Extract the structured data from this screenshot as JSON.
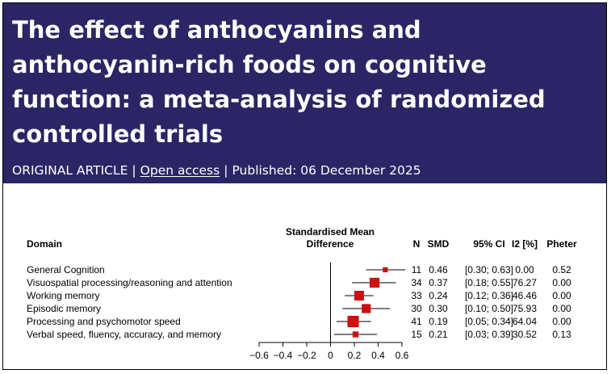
{
  "article": {
    "title": "The effect of anthocyanins and anthocyanin-rich foods on cognitive function: a meta-analysis of randomized controlled trials",
    "type_label": "ORIGINAL ARTICLE",
    "access_label": "Open access",
    "published_label": "Published: 06 December 2025"
  },
  "colors": {
    "header_bg": "#2b2566",
    "marker": "#cc1111"
  },
  "chart_data": {
    "type": "forest",
    "columns": {
      "domain": "Domain",
      "effect_line1": "Standardised Mean",
      "effect_line2": "Difference",
      "n": "N",
      "smd": "SMD",
      "ci": "95% CI",
      "i2": "I2 [%]",
      "pheter": "Pheter"
    },
    "xlim": [
      -0.6,
      0.6
    ],
    "ticks": [
      -0.6,
      -0.4,
      -0.2,
      0,
      0.2,
      0.4,
      0.6
    ],
    "tick_labels": [
      "−0.6",
      "−0.4",
      "−0.2",
      "0",
      "0.2",
      "0.4",
      "0.6"
    ],
    "rows": [
      {
        "domain": "General Cognition",
        "n": "11",
        "smd": 0.46,
        "lo": 0.3,
        "hi": 0.63,
        "smd_text": "0.46",
        "ci_text": "[0.30; 0.63]",
        "i2": "0.00",
        "pheter": "0.52"
      },
      {
        "domain": "Visuospatial processing/reasoning and attention",
        "n": "34",
        "smd": 0.37,
        "lo": 0.18,
        "hi": 0.55,
        "smd_text": "0.37",
        "ci_text": "[0.18; 0.55]",
        "i2": "76.27",
        "pheter": "0.00"
      },
      {
        "domain": "Working memory",
        "n": "33",
        "smd": 0.24,
        "lo": 0.12,
        "hi": 0.36,
        "smd_text": "0.24",
        "ci_text": "[0.12; 0.36]",
        "i2": "46.46",
        "pheter": "0.00"
      },
      {
        "domain": "Episodic memory",
        "n": "30",
        "smd": 0.3,
        "lo": 0.1,
        "hi": 0.5,
        "smd_text": "0.30",
        "ci_text": "[0.10; 0.50]",
        "i2": "75.93",
        "pheter": "0.00"
      },
      {
        "domain": "Processing and psychomotor speed",
        "n": "41",
        "smd": 0.19,
        "lo": 0.05,
        "hi": 0.34,
        "smd_text": "0.19",
        "ci_text": "[0.05; 0.34]",
        "i2": "64.04",
        "pheter": "0.00"
      },
      {
        "domain": "Verbal speed, fluency, accuracy, and memory",
        "n": "15",
        "smd": 0.21,
        "lo": 0.03,
        "hi": 0.39,
        "smd_text": "0.21",
        "ci_text": "[0.03; 0.39]",
        "i2": "30.52",
        "pheter": "0.13"
      }
    ]
  }
}
